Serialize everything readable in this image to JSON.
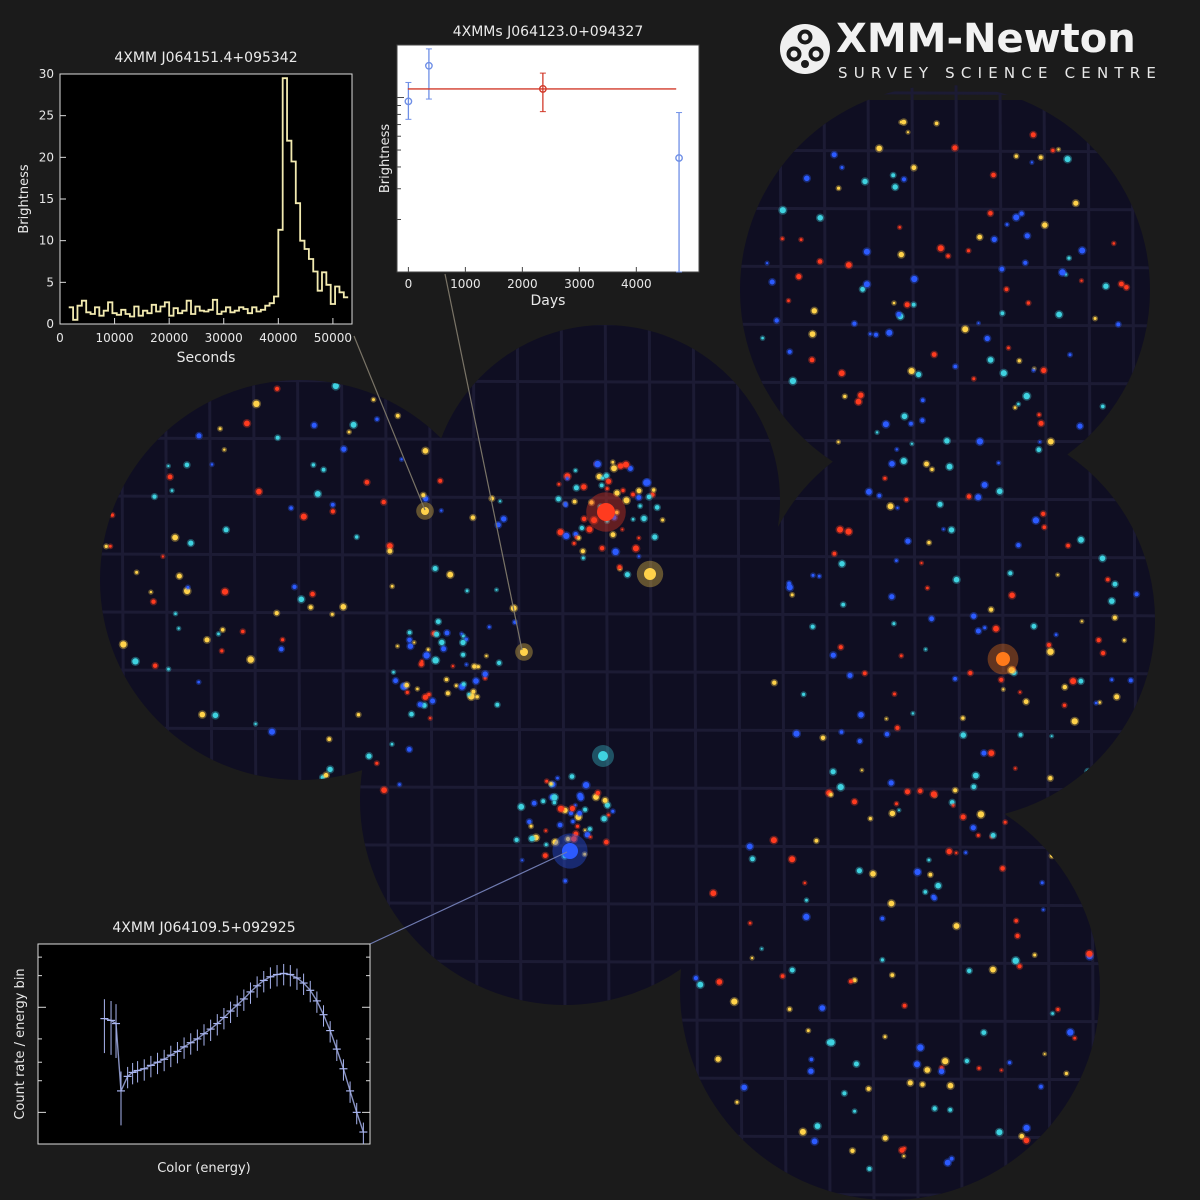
{
  "logo": {
    "title": "XMM-Newton",
    "subtitle": "SURVEY SCIENCE CENTRE",
    "icon": "xmm-telescope-mirrors-icon"
  },
  "colors": {
    "background": "#1b1b1b",
    "lightcurve_line": "#f2eab0",
    "longterm_blue": "#6f8fe6",
    "longterm_red": "#d23a2a",
    "spectrum": "#a9b5f0"
  },
  "sky": {
    "description_colors": [
      "#ff3b1f",
      "#ffd24a",
      "#3fd2e0",
      "#2c5bff"
    ]
  },
  "chart_data": [
    {
      "id": "lightcurve",
      "type": "line",
      "title": "4XMM J064151.4+095342",
      "xlabel": "Seconds",
      "ylabel": "Brightness",
      "xlim": [
        0,
        53500
      ],
      "ylim": [
        0,
        30
      ],
      "xticks": [
        0,
        10000,
        20000,
        30000,
        40000,
        50000
      ],
      "yticks": [
        0,
        5,
        10,
        15,
        20,
        25,
        30
      ],
      "step": true,
      "x": [
        2000,
        2800,
        3600,
        4400,
        5200,
        6000,
        6800,
        7600,
        8400,
        9200,
        10000,
        10800,
        11600,
        12400,
        13200,
        14000,
        14800,
        15600,
        16400,
        17200,
        18000,
        18800,
        19600,
        20400,
        21200,
        22000,
        22800,
        23600,
        24400,
        25200,
        26000,
        26800,
        27600,
        28400,
        29200,
        30000,
        30800,
        31600,
        32400,
        33200,
        34000,
        34800,
        35600,
        36400,
        37200,
        38000,
        38800,
        39600,
        40400,
        41200,
        42000,
        42800,
        43600,
        44400,
        45200,
        46000,
        46800,
        47600,
        48400,
        49200,
        50000,
        50800,
        51600,
        52400
      ],
      "y": [
        2.0,
        0.5,
        2.2,
        2.8,
        1.4,
        1.2,
        2.0,
        1.0,
        1.6,
        2.6,
        1.3,
        1.1,
        1.7,
        1.2,
        0.9,
        2.1,
        1.0,
        1.6,
        1.3,
        2.3,
        1.5,
        2.1,
        2.6,
        1.0,
        1.9,
        1.3,
        1.6,
        2.8,
        1.2,
        2.1,
        1.6,
        1.5,
        1.7,
        2.9,
        1.2,
        1.5,
        2.0,
        1.4,
        1.6,
        2.0,
        1.8,
        1.3,
        2.0,
        1.5,
        1.7,
        2.2,
        2.5,
        3.3,
        11.3,
        29.5,
        22.0,
        19.5,
        14.5,
        10.0,
        9.0,
        7.8,
        6.3,
        4.0,
        6.2,
        4.7,
        2.4,
        4.5,
        3.8,
        3.2
      ]
    },
    {
      "id": "longterm",
      "type": "scatter",
      "title": "4XMMs J064123.0+094327",
      "xlabel": "Days",
      "ylabel": "Brightness",
      "xlim": [
        -200,
        5100
      ],
      "xticks": [
        0,
        1000,
        2000,
        3000,
        4000
      ],
      "ylog": true,
      "ylim": [
        0.1,
        2.0
      ],
      "series": [
        {
          "color": "blue",
          "points": [
            {
              "x": 0,
              "y": 0.95,
              "ylo": 0.75,
              "yhi": 1.22
            },
            {
              "x": 360,
              "y": 1.52,
              "ylo": 0.98,
              "yhi": 1.9
            },
            {
              "x": 4750,
              "y": 0.45,
              "ylo": 0.1,
              "yhi": 0.82
            }
          ]
        },
        {
          "color": "red",
          "points": [
            {
              "x": 2360,
              "y": 1.12,
              "xlo": -10,
              "xhi": 4700,
              "ylo": 0.83,
              "yhi": 1.38
            }
          ]
        }
      ]
    },
    {
      "id": "spectrum",
      "type": "line",
      "title": "4XMM J064109.5+092925",
      "xlabel": "Color (energy)",
      "ylabel": "Count rate / energy bin",
      "xlim": [
        0,
        1
      ],
      "ylog": true,
      "ylim": [
        0.05,
        4
      ],
      "points": [
        [
          0.2,
          0.78
        ],
        [
          0.22,
          0.75
        ],
        [
          0.235,
          0.7
        ],
        [
          0.25,
          0.16
        ],
        [
          0.27,
          0.22
        ],
        [
          0.285,
          0.24
        ],
        [
          0.3,
          0.25
        ],
        [
          0.32,
          0.26
        ],
        [
          0.34,
          0.28
        ],
        [
          0.36,
          0.3
        ],
        [
          0.38,
          0.32
        ],
        [
          0.4,
          0.35
        ],
        [
          0.42,
          0.38
        ],
        [
          0.44,
          0.42
        ],
        [
          0.46,
          0.46
        ],
        [
          0.48,
          0.5
        ],
        [
          0.5,
          0.56
        ],
        [
          0.52,
          0.62
        ],
        [
          0.54,
          0.7
        ],
        [
          0.56,
          0.8
        ],
        [
          0.58,
          0.92
        ],
        [
          0.6,
          1.05
        ],
        [
          0.62,
          1.2
        ],
        [
          0.64,
          1.4
        ],
        [
          0.66,
          1.6
        ],
        [
          0.68,
          1.8
        ],
        [
          0.7,
          1.95
        ],
        [
          0.72,
          2.05
        ],
        [
          0.74,
          2.1
        ],
        [
          0.76,
          2.05
        ],
        [
          0.78,
          1.9
        ],
        [
          0.8,
          1.7
        ],
        [
          0.82,
          1.45
        ],
        [
          0.84,
          1.15
        ],
        [
          0.86,
          0.85
        ],
        [
          0.88,
          0.6
        ],
        [
          0.9,
          0.4
        ],
        [
          0.92,
          0.26
        ],
        [
          0.94,
          0.16
        ],
        [
          0.96,
          0.1
        ],
        [
          0.98,
          0.065
        ]
      ]
    }
  ]
}
